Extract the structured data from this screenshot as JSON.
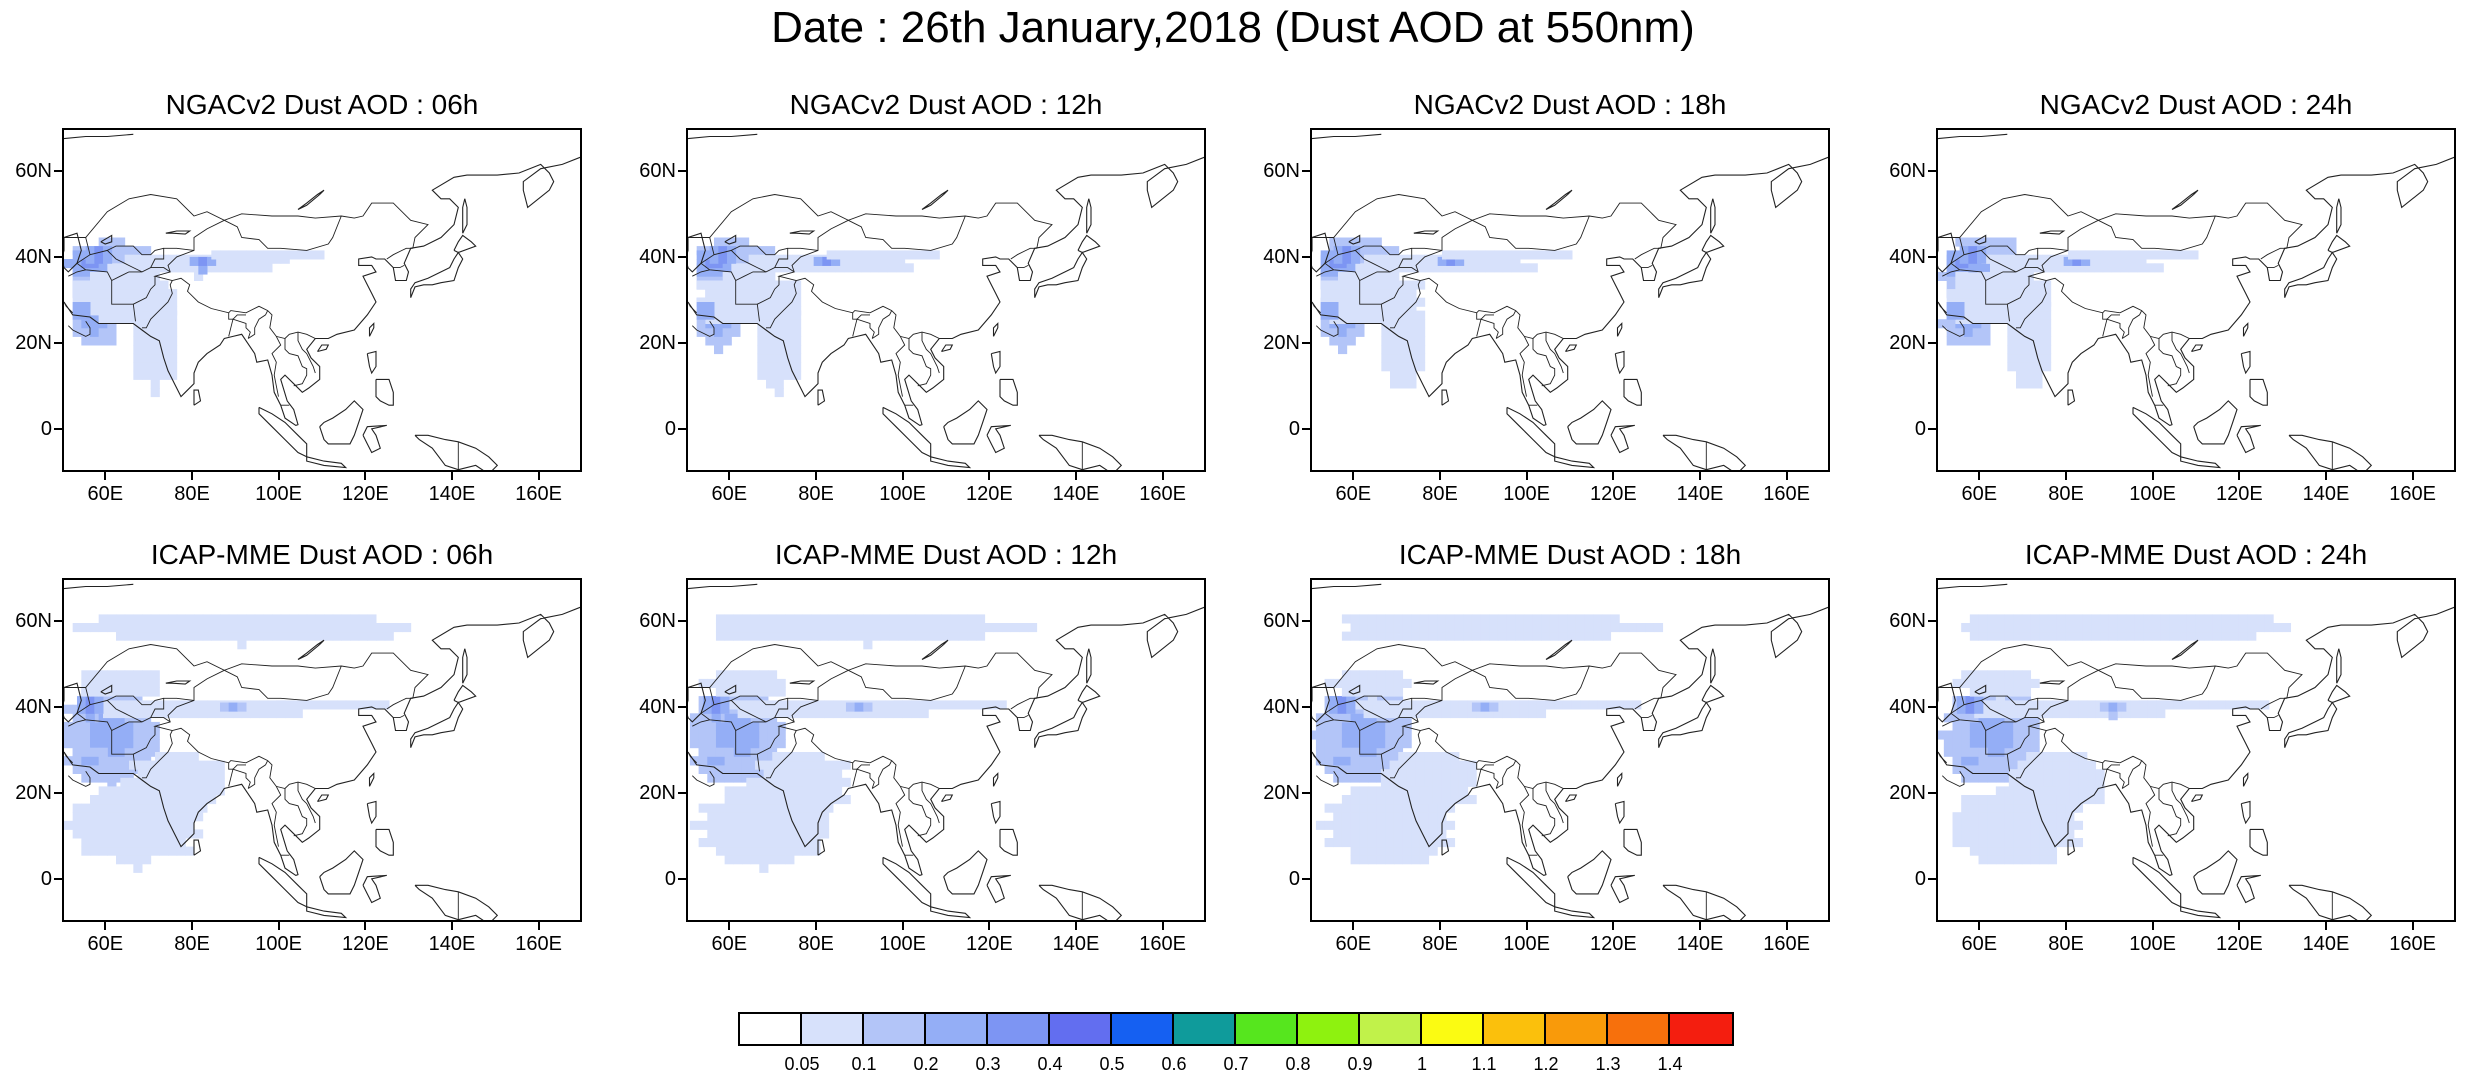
{
  "title": "Date : 26th January,2018 (Dust AOD at 550nm)",
  "panels": [
    {
      "title": "NGACv2 Dust AOD : 06h",
      "model": "NGACv2"
    },
    {
      "title": "NGACv2 Dust AOD : 12h",
      "model": "NGACv2"
    },
    {
      "title": "NGACv2 Dust AOD : 18h",
      "model": "NGACv2"
    },
    {
      "title": "NGACv2 Dust AOD : 24h",
      "model": "NGACv2"
    },
    {
      "title": "ICAP-MME Dust AOD : 06h",
      "model": "ICAP"
    },
    {
      "title": "ICAP-MME Dust AOD : 12h",
      "model": "ICAP"
    },
    {
      "title": "ICAP-MME Dust AOD : 18h",
      "model": "ICAP"
    },
    {
      "title": "ICAP-MME Dust AOD : 24h",
      "model": "ICAP"
    }
  ],
  "axes": {
    "lat_labels": [
      "60N",
      "40N",
      "20N",
      "0"
    ],
    "lon_labels": [
      "60E",
      "80E",
      "100E",
      "120E",
      "140E",
      "160E"
    ],
    "lat_values": [
      60,
      40,
      20,
      0
    ],
    "lon_values": [
      60,
      80,
      100,
      120,
      140,
      160
    ],
    "lat_range": [
      -10,
      70
    ],
    "lon_range": [
      50,
      170
    ]
  },
  "colorbar": {
    "labels": [
      "0.05",
      "0.1",
      "0.2",
      "0.3",
      "0.4",
      "0.5",
      "0.6",
      "0.7",
      "0.8",
      "0.9",
      "1",
      "1.1",
      "1.2",
      "1.3",
      "1.4"
    ],
    "colors": [
      "#ffffff",
      "#d7e1fb",
      "#b3c5f8",
      "#94aef6",
      "#7d95f3",
      "#626ef0",
      "#1560f2",
      "#0f9b9b",
      "#56e61e",
      "#8ef20f",
      "#c1f24a",
      "#fbfb12",
      "#fbc00c",
      "#f99a0a",
      "#f7700c",
      "#f41e0f"
    ]
  }
}
